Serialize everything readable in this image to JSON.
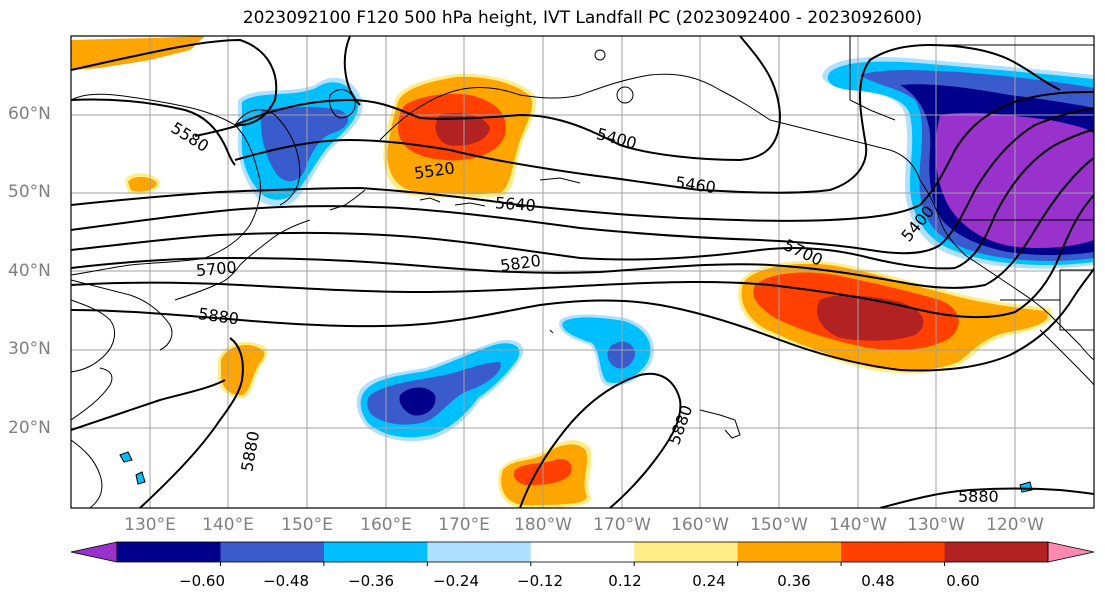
{
  "title": "2023092100 F120 500 hPa height, IVT Landfall PC (2023092400 - 2023092600)",
  "lat_labels": [
    "60°N",
    "50°N",
    "40°N",
    "30°N",
    "20°N"
  ],
  "lon_labels": [
    "130°E",
    "140°E",
    "150°E",
    "160°E",
    "170°E",
    "180°W",
    "170°W",
    "160°W",
    "150°W",
    "140°W",
    "130°W",
    "120°W"
  ],
  "contour_labels": [
    "5580",
    "5520",
    "5400",
    "5460",
    "5640",
    "5400",
    "5700",
    "5820",
    "5700",
    "5880",
    "5880",
    "5880",
    "5880"
  ],
  "colorbar": {
    "ticks": [
      "−0.60",
      "−0.48",
      "−0.36",
      "−0.24",
      "−0.12",
      "0.12",
      "0.24",
      "0.36",
      "0.48",
      "0.60"
    ],
    "colors": [
      "#9932cc",
      "#00008b",
      "#3a5bcc",
      "#00bfff",
      "#b0e0ff",
      "#ffffff",
      "#ffee88",
      "#ffa500",
      "#ff4000",
      "#b22222",
      "#ff88b0"
    ]
  }
}
